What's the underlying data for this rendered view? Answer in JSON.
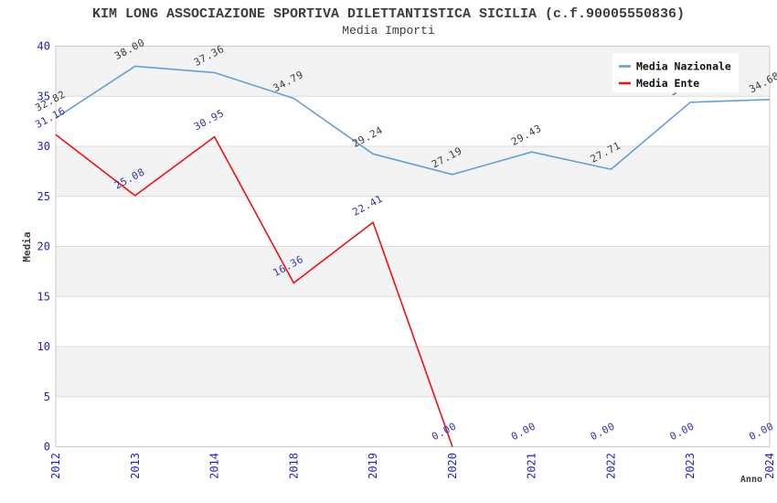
{
  "chart_data": {
    "type": "line",
    "title": "KIM LONG ASSOCIAZIONE SPORTIVA DILETTANTISTICA SICILIA (c.f.90005550836)",
    "subtitle": "Media Importi",
    "xlabel": "Anno",
    "ylabel": "Media",
    "categories": [
      "2012",
      "2013",
      "2014",
      "2018",
      "2019",
      "2020",
      "2021",
      "2022",
      "2023",
      "2024"
    ],
    "series": [
      {
        "name": "Media Nazionale",
        "color": "#64a0d8",
        "label_color": "#3d3d3d",
        "values": [
          32.82,
          38.0,
          37.36,
          34.79,
          29.24,
          27.19,
          29.43,
          27.71,
          34.4,
          34.68
        ]
      },
      {
        "name": "Media Ente",
        "color": "#ee1111",
        "label_color": "#3434b4",
        "values": [
          31.16,
          25.08,
          30.95,
          16.36,
          22.41,
          0.0,
          0.0,
          0.0,
          0.0,
          0.0
        ],
        "line_drawn_through_index": 5
      }
    ],
    "ylim": [
      0,
      40
    ],
    "yticks": [
      0,
      5,
      10,
      15,
      20,
      25,
      30,
      35,
      40
    ],
    "grid": {
      "bands": true,
      "band_color": "#f3f3f3",
      "gridline_color": "#dcdcdc"
    },
    "legend": {
      "position": "top-right",
      "background": "#ffffff",
      "items": [
        "Media Nazionale",
        "Media Ente"
      ]
    },
    "tick_color": "#2222cc",
    "axis_border_color": "#c8c8c8",
    "text_color": "#3d3d3d"
  }
}
